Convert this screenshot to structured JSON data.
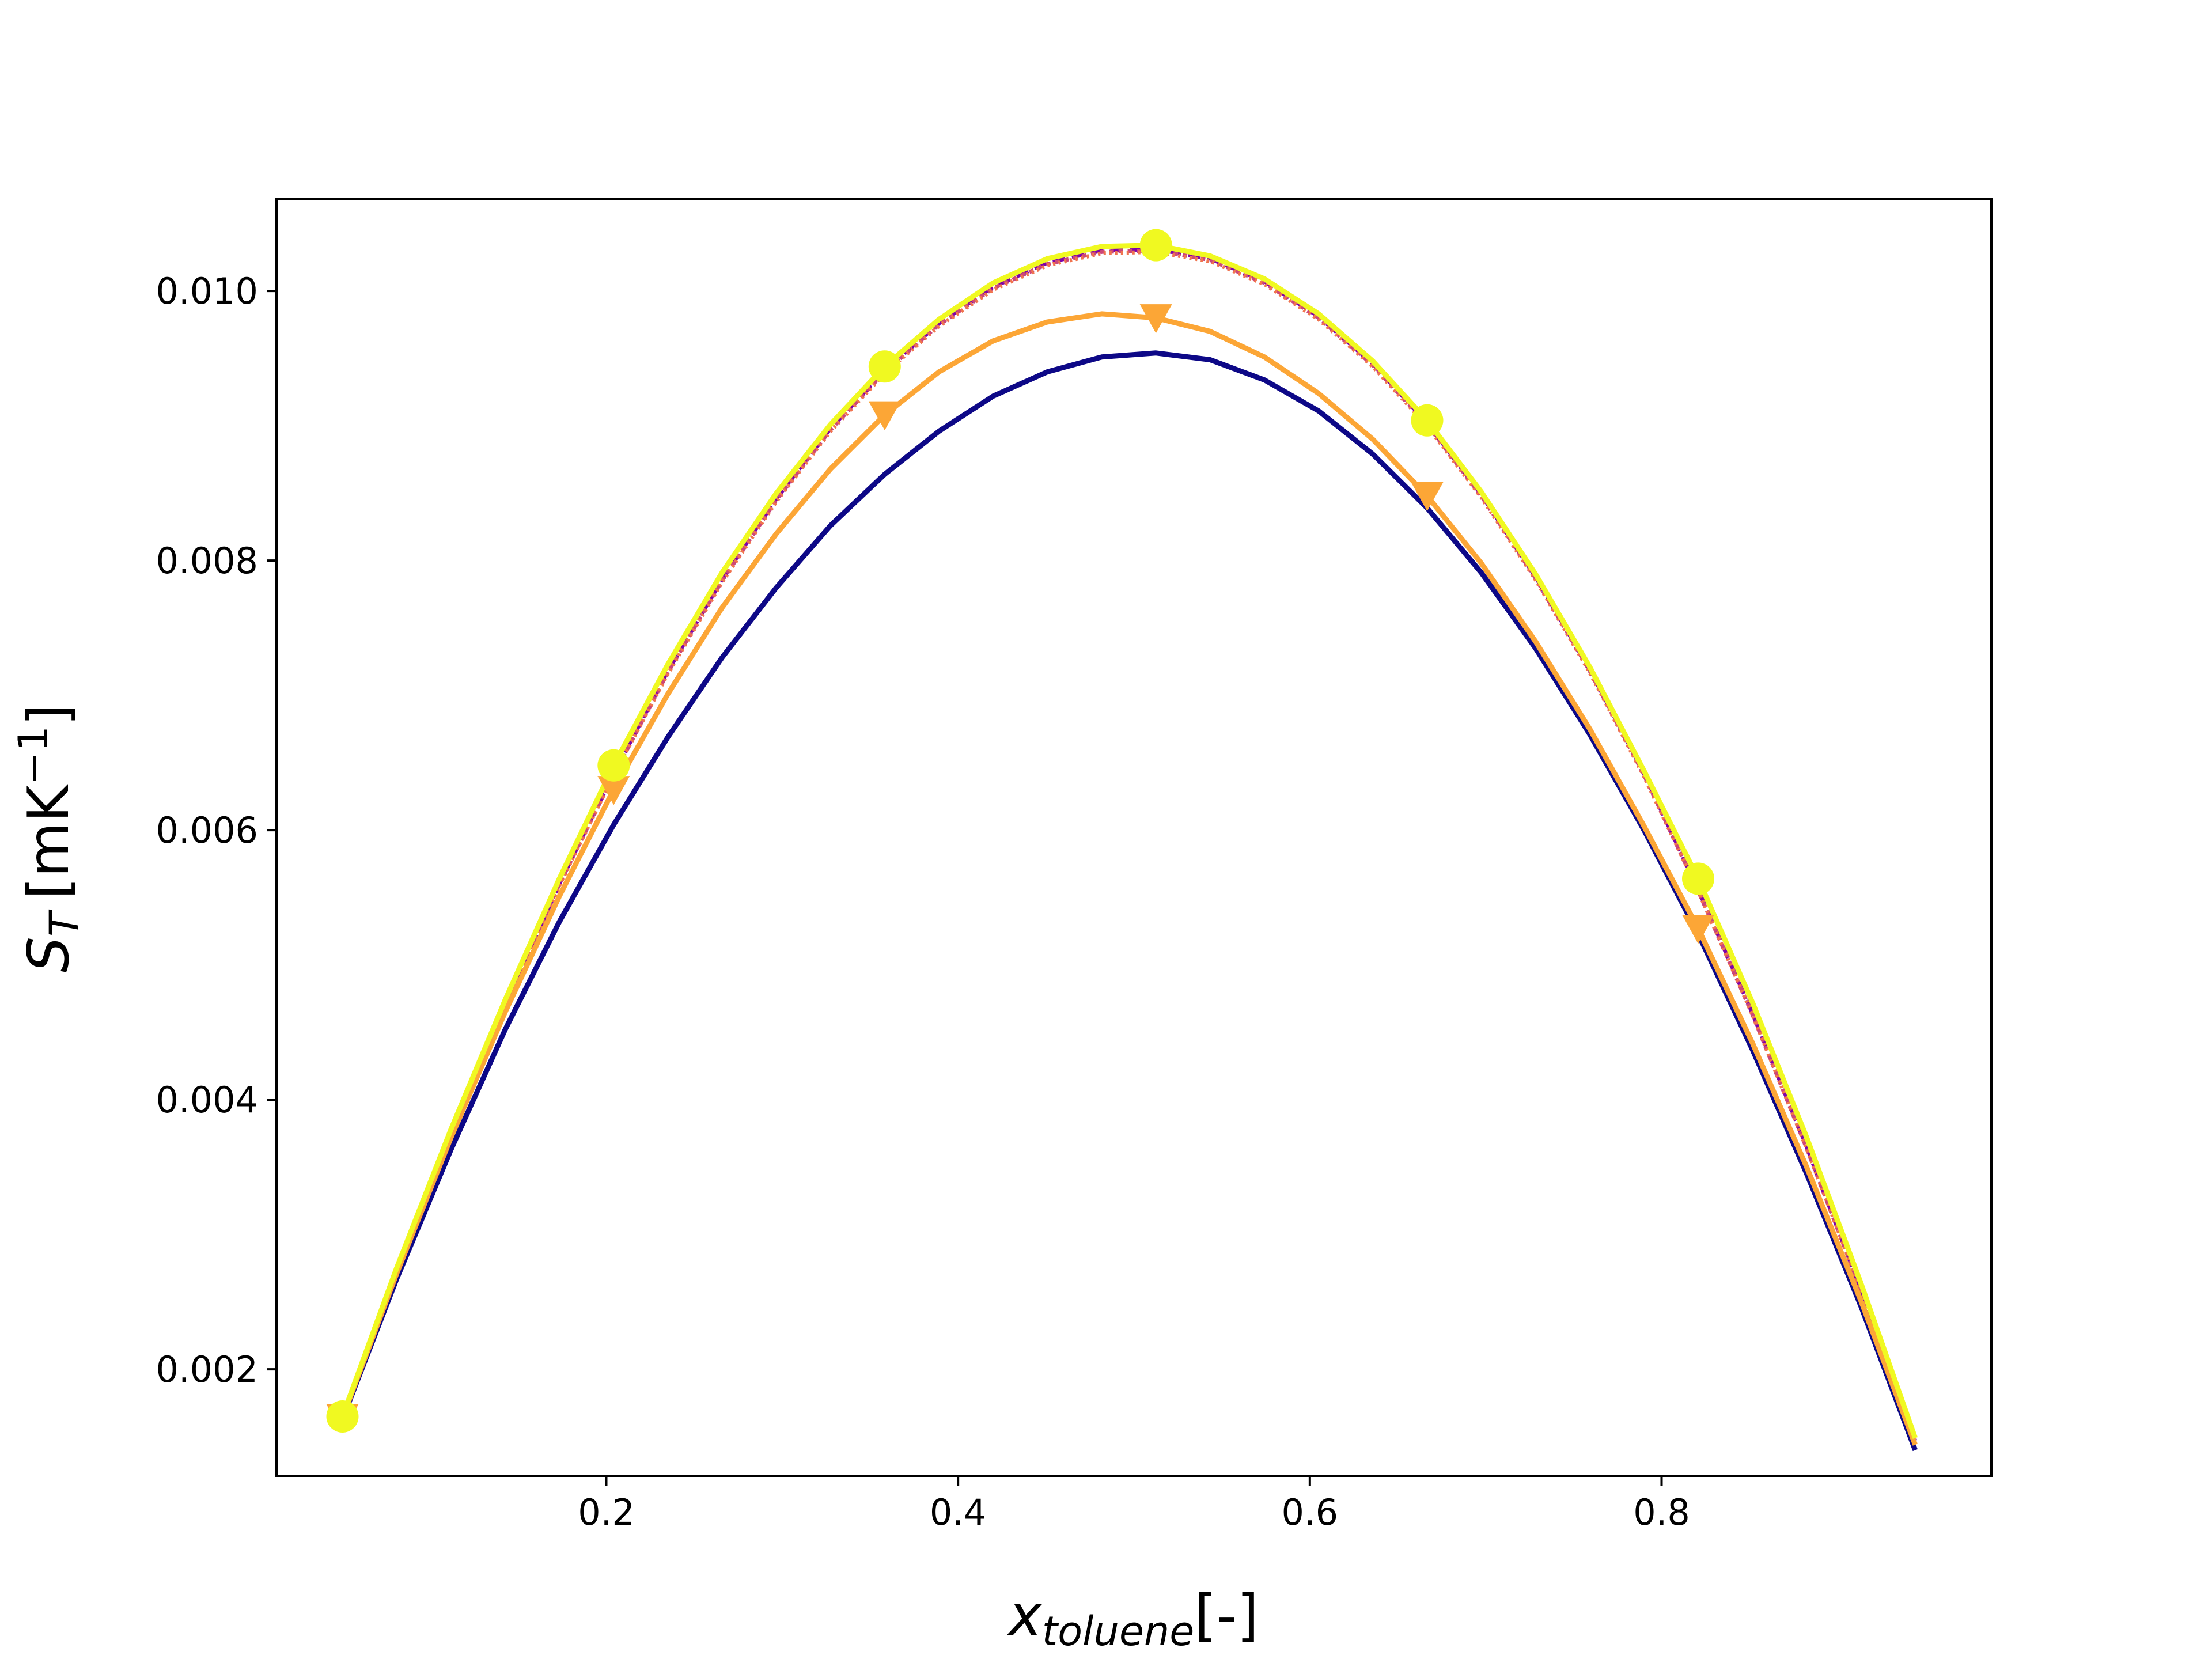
{
  "chart_data": {
    "type": "line",
    "xlabel": {
      "main": "x",
      "subscript": "toluene",
      "suffix": "[-]"
    },
    "ylabel": {
      "main": "S",
      "subscript": "T",
      "suffix": "[mK",
      "superscript": "−1",
      "close": "]"
    },
    "xlim": [
      0.0125,
      0.9875
    ],
    "ylim": [
      0.00121,
      0.01068
    ],
    "xticks": [
      {
        "value": 0.2,
        "label": "0.2"
      },
      {
        "value": 0.4,
        "label": "0.4"
      },
      {
        "value": 0.6,
        "label": "0.6"
      },
      {
        "value": 0.8,
        "label": "0.8"
      }
    ],
    "yticks": [
      {
        "value": 0.002,
        "label": "0.002"
      },
      {
        "value": 0.004,
        "label": "0.004"
      },
      {
        "value": 0.006,
        "label": "0.006"
      },
      {
        "value": 0.008,
        "label": "0.008"
      },
      {
        "value": 0.01,
        "label": "0.010"
      }
    ],
    "x": [
      0.05,
      0.0808,
      0.1117,
      0.1425,
      0.1733,
      0.2042,
      0.235,
      0.2658,
      0.2967,
      0.3275,
      0.3583,
      0.3892,
      0.42,
      0.4508,
      0.4817,
      0.5125,
      0.5433,
      0.5742,
      0.605,
      0.6358,
      0.6667,
      0.6975,
      0.7283,
      0.7592,
      0.79,
      0.8208,
      0.8517,
      0.8825,
      0.9133,
      0.9442
    ],
    "series": [
      {
        "color": "#0d0887",
        "width": 9,
        "dash": "",
        "values": [
          0.00163,
          0.00267,
          0.00363,
          0.00452,
          0.00532,
          0.00604,
          0.00669,
          0.00728,
          0.0078,
          0.00826,
          0.00864,
          0.00896,
          0.00922,
          0.0094,
          0.00951,
          0.00954,
          0.00949,
          0.00934,
          0.00911,
          0.00879,
          0.00839,
          0.00791,
          0.00735,
          0.00671,
          0.006,
          0.00523,
          0.00437,
          0.00345,
          0.00247,
          0.0014
        ]
      },
      {
        "color": "#7e03a8",
        "width": 7,
        "dash": "22 12",
        "values": [
          0.00163,
          0.00271,
          0.00374,
          0.0047,
          0.0056,
          0.00642,
          0.00718,
          0.00786,
          0.00846,
          0.00898,
          0.00941,
          0.00976,
          0.01003,
          0.01021,
          0.0103,
          0.01031,
          0.01024,
          0.01007,
          0.00981,
          0.00946,
          0.00902,
          0.00849,
          0.00788,
          0.00719,
          0.00642,
          0.00556,
          0.00464,
          0.00365,
          0.00259,
          0.00147
        ]
      },
      {
        "color": "#cc4778",
        "width": 7,
        "dash": "8 8",
        "values": [
          0.00163,
          0.00271,
          0.00374,
          0.0047,
          0.0056,
          0.00641,
          0.00717,
          0.00785,
          0.00845,
          0.00897,
          0.0094,
          0.00975,
          0.01002,
          0.0102,
          0.01029,
          0.0103,
          0.01023,
          0.01006,
          0.0098,
          0.00945,
          0.00901,
          0.00848,
          0.00787,
          0.00718,
          0.00641,
          0.00555,
          0.00463,
          0.00364,
          0.00259,
          0.00147
        ]
      },
      {
        "color": "#f0744f",
        "width": 7,
        "dash": "4 6",
        "values": [
          0.00163,
          0.00271,
          0.00373,
          0.0047,
          0.00559,
          0.00641,
          0.00716,
          0.00784,
          0.00844,
          0.00896,
          0.00939,
          0.00974,
          0.01001,
          0.01019,
          0.01028,
          0.01029,
          0.01022,
          0.01005,
          0.00979,
          0.00944,
          0.009,
          0.00847,
          0.00786,
          0.00717,
          0.0064,
          0.00555,
          0.00463,
          0.00364,
          0.00259,
          0.00147
        ]
      },
      {
        "color": "#fca636",
        "width": 9,
        "dash": "",
        "marker": "triangle-down",
        "marker_every": 5,
        "values": [
          0.00164,
          0.00271,
          0.00372,
          0.00465,
          0.00551,
          0.0063,
          0.00701,
          0.00765,
          0.0082,
          0.00868,
          0.00908,
          0.0094,
          0.00963,
          0.00977,
          0.00983,
          0.0098,
          0.0097,
          0.00951,
          0.00924,
          0.0089,
          0.00848,
          0.00798,
          0.0074,
          0.00675,
          0.00603,
          0.00527,
          0.00442,
          0.0035,
          0.00251,
          0.00144
        ]
      },
      {
        "color": "#f0f921",
        "width": 9,
        "dash": "",
        "marker": "circle",
        "marker_every": 5,
        "values": [
          0.00165,
          0.00275,
          0.00378,
          0.00474,
          0.00564,
          0.00648,
          0.00723,
          0.00791,
          0.0085,
          0.00901,
          0.00944,
          0.00979,
          0.01006,
          0.01024,
          0.01033,
          0.01034,
          0.01026,
          0.01009,
          0.00983,
          0.00948,
          0.00904,
          0.00851,
          0.0079,
          0.00721,
          0.00644,
          0.00564,
          0.00472,
          0.00372,
          0.00264,
          0.00149
        ]
      }
    ]
  }
}
